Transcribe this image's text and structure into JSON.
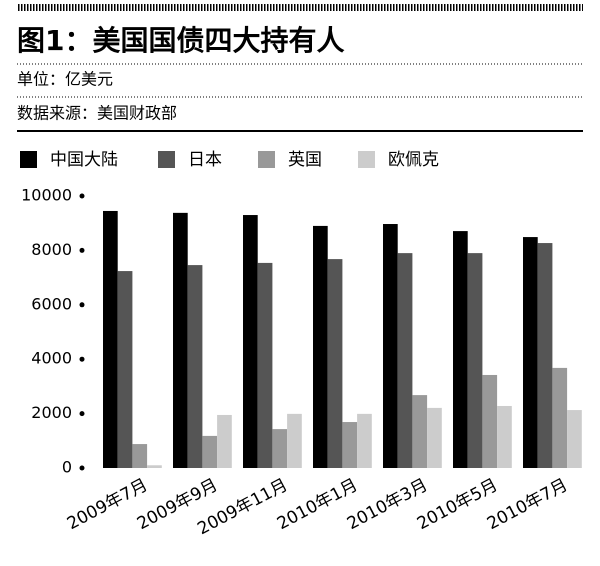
{
  "chart_data": {
    "type": "bar",
    "title": "图1：美国国债四大持有人",
    "unit": "单位：亿美元",
    "source": "数据来源：美国财政部",
    "categories": [
      "2009年7月",
      "2009年9月",
      "2009年11月",
      "2010年1月",
      "2010年3月",
      "2010年5月",
      "2010年7月"
    ],
    "series": [
      {
        "name": "中国大陆",
        "color": "#000000",
        "values": [
          9450,
          9380,
          9300,
          8900,
          8970,
          8710,
          8490
        ]
      },
      {
        "name": "日本",
        "color": "#555555",
        "values": [
          7240,
          7460,
          7540,
          7680,
          7900,
          7900,
          8270
        ]
      },
      {
        "name": "英国",
        "color": "#999999",
        "values": [
          880,
          1180,
          1430,
          1690,
          2680,
          3420,
          3680
        ]
      },
      {
        "name": "欧佩克",
        "color": "#cccccc",
        "values": [
          100,
          1950,
          1990,
          1990,
          2210,
          2280,
          2130
        ]
      }
    ],
    "ylim": [
      0,
      10000
    ],
    "yticks": [
      0,
      2000,
      4000,
      6000,
      8000,
      10000
    ],
    "grid": false
  }
}
